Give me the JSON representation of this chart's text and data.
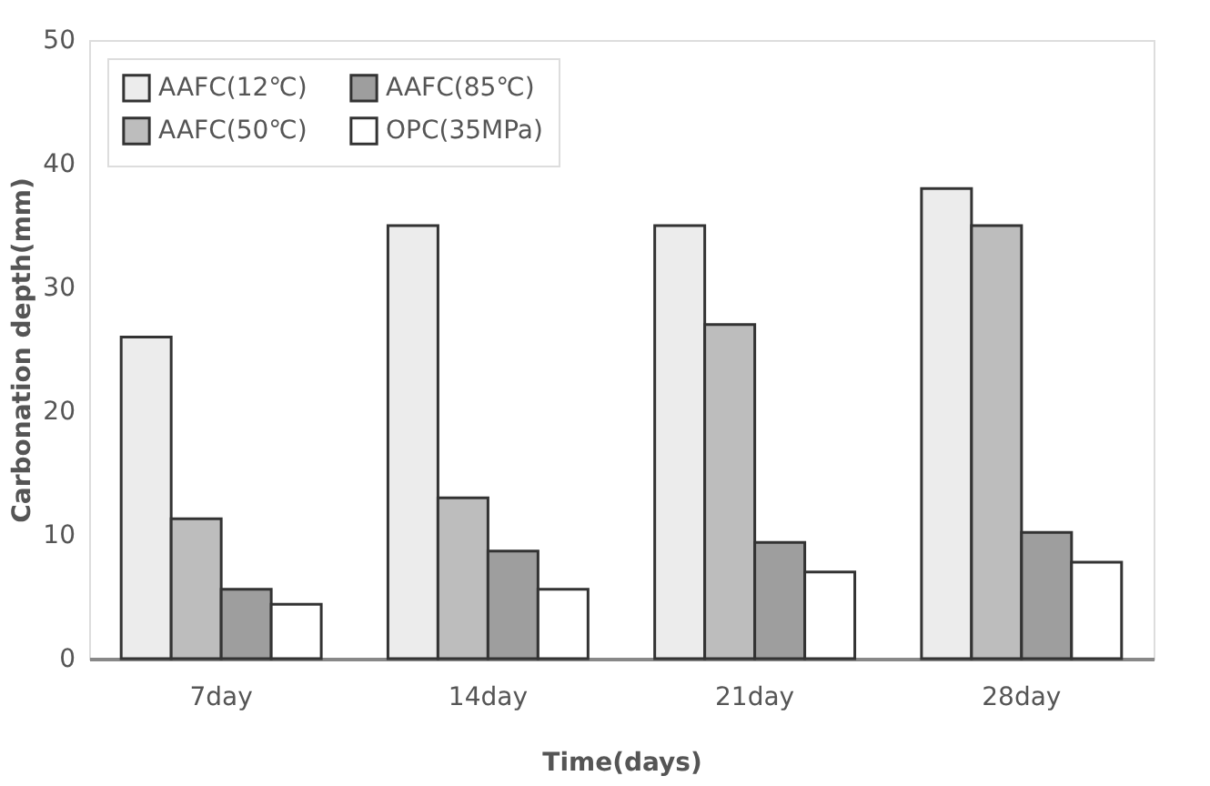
{
  "chart_data": {
    "type": "bar",
    "xlabel": "Time(days)",
    "ylabel": "Carbonation depth(mm)",
    "categories": [
      "7day",
      "14day",
      "21day",
      "28day"
    ],
    "series": [
      {
        "name": "AAFC(12℃)",
        "color": "#ececec",
        "values": [
          26,
          35,
          35,
          38
        ]
      },
      {
        "name": "AAFC(50℃)",
        "color": "#bdbdbd",
        "values": [
          11.3,
          13,
          27,
          35
        ]
      },
      {
        "name": "AAFC(85℃)",
        "color": "#9e9e9e",
        "values": [
          5.6,
          8.7,
          9.4,
          10.2
        ]
      },
      {
        "name": "OPC(35MPa)",
        "color": "#ffffff",
        "values": [
          4.4,
          5.6,
          7,
          7.8
        ]
      }
    ],
    "ylim": [
      0,
      50
    ],
    "yticks": [
      0,
      10,
      20,
      30,
      40,
      50
    ],
    "grid": false,
    "legend": "top left"
  }
}
